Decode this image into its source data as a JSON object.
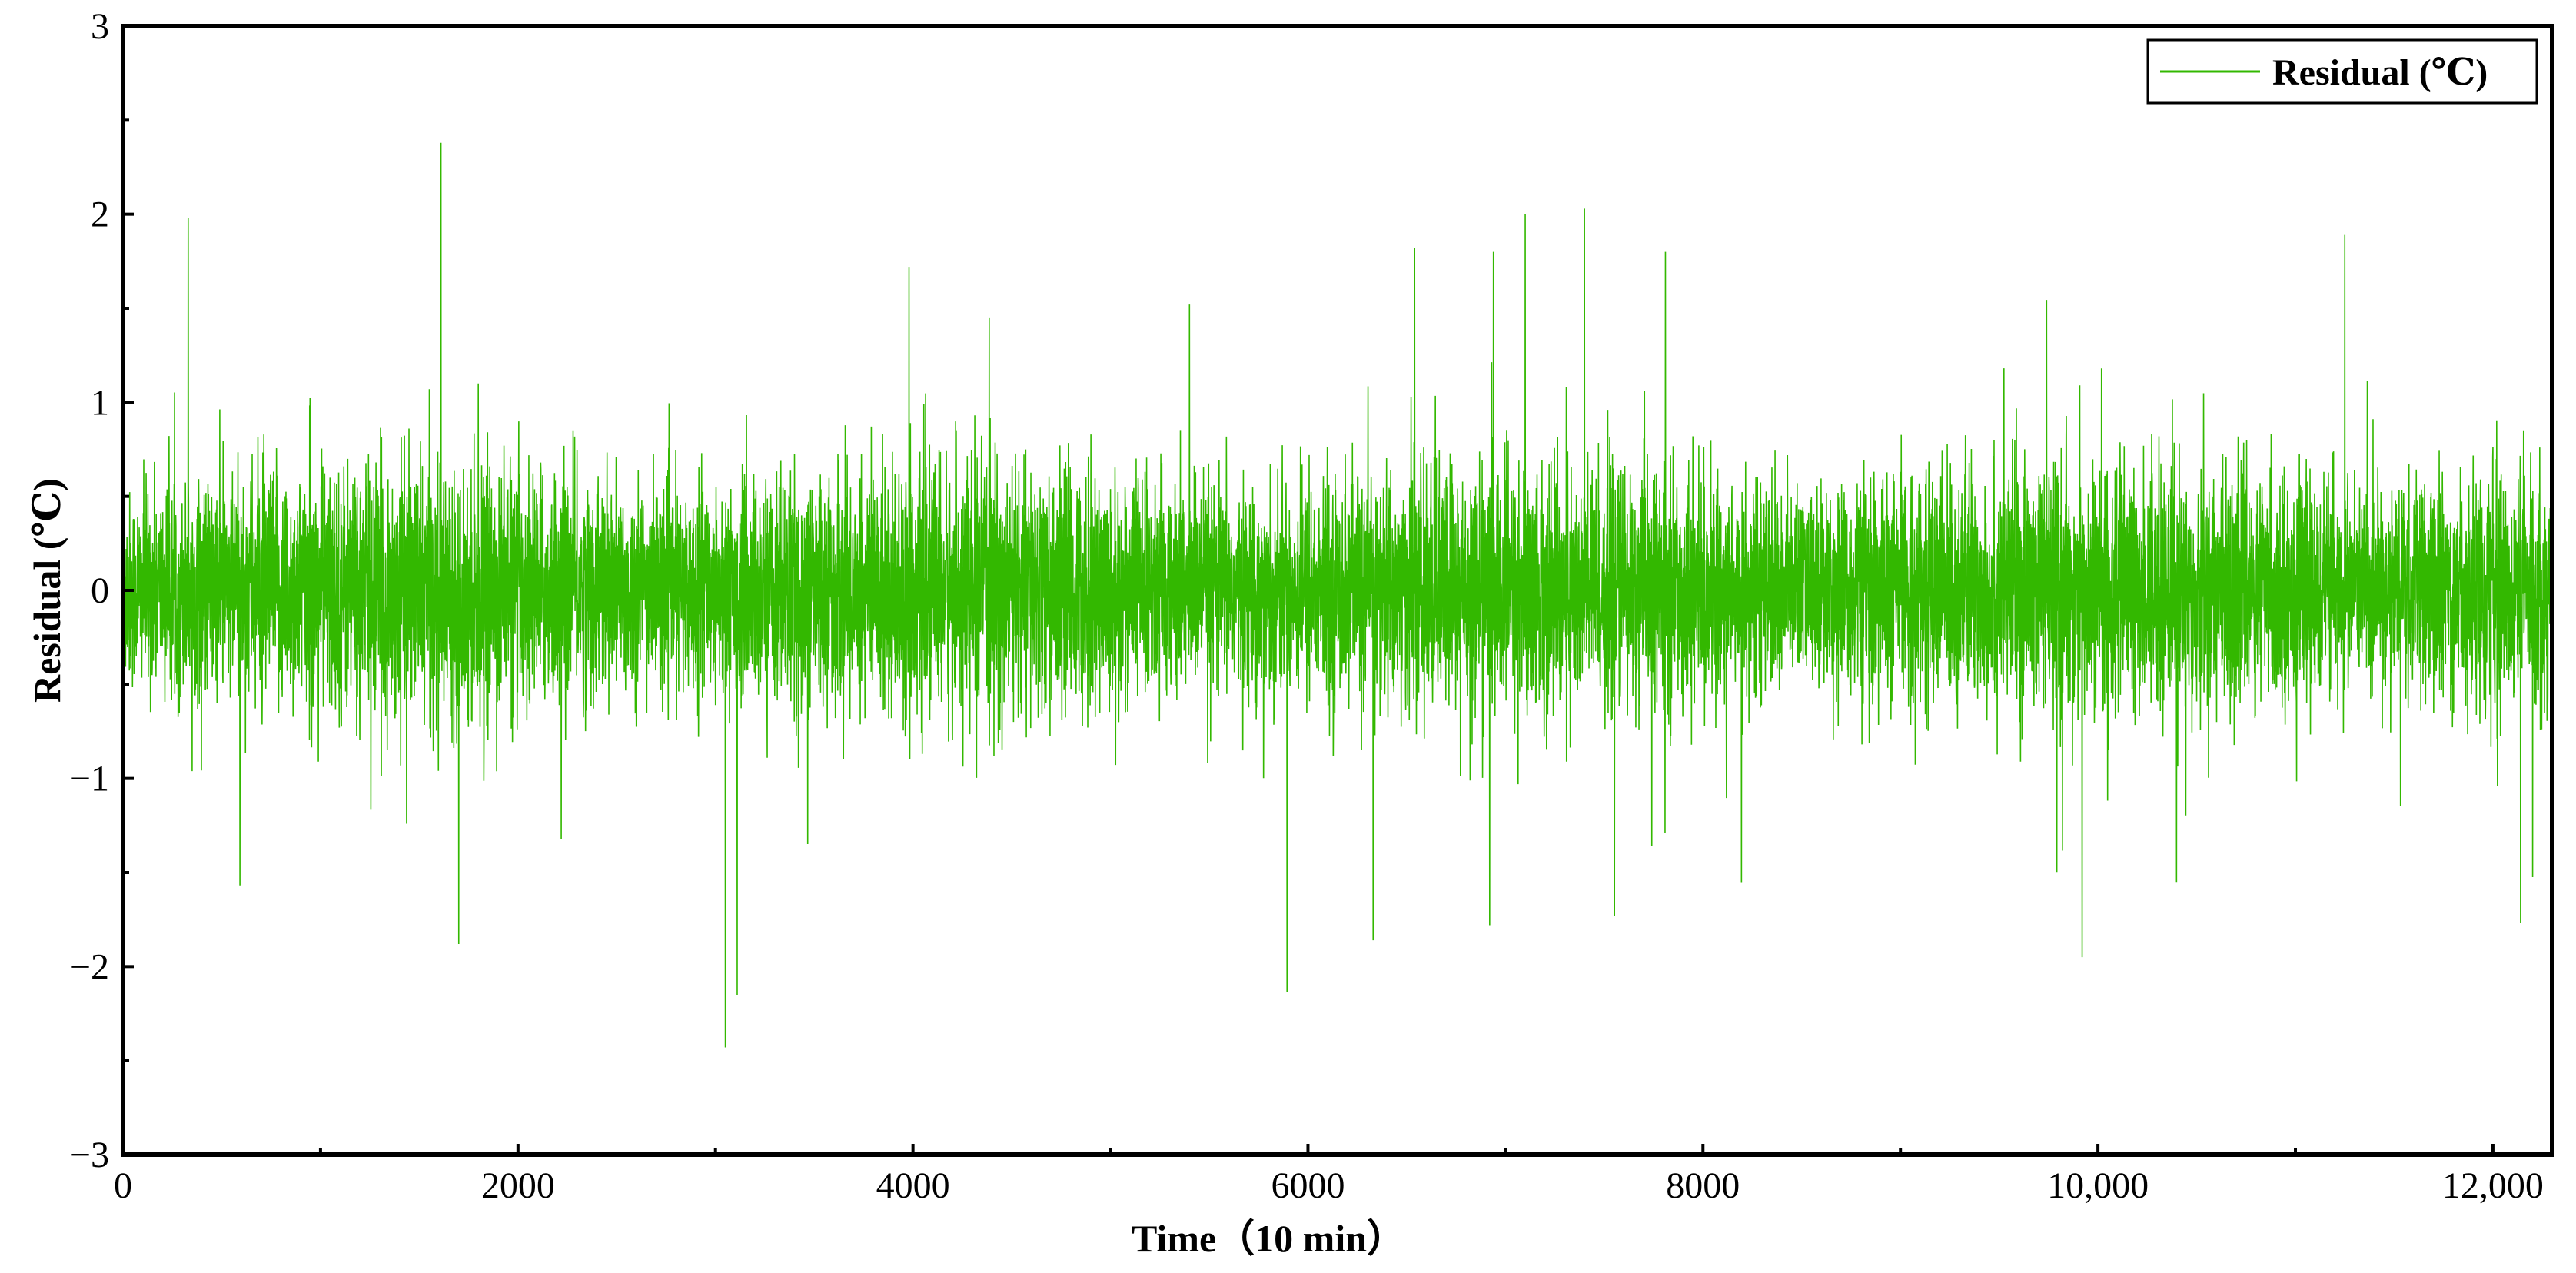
{
  "chart_data": {
    "type": "line",
    "title": "",
    "xlabel": "Time（10 min）",
    "ylabel": "Residual (℃)",
    "xlim": [
      0,
      12300
    ],
    "ylim": [
      -3,
      3
    ],
    "x_ticks": [
      0,
      2000,
      4000,
      6000,
      8000,
      10000,
      12000
    ],
    "x_tick_labels": [
      "0",
      "2000",
      "4000",
      "6000",
      "8000",
      "10,000",
      "12,000"
    ],
    "y_ticks": [
      -3,
      -2,
      -1,
      0,
      1,
      2
    ],
    "y_tick_labels": [
      "−3",
      "−2",
      "−1",
      "0",
      "1",
      "2"
    ],
    "y_top_label": "3",
    "grid": false,
    "legend_position": "top-right",
    "series": [
      {
        "name": "Residual (℃)",
        "color": "#33b800",
        "n_points": 12300,
        "noise_std": 0.3,
        "peaks": [
          {
            "x": 330,
            "y": 1.98
          },
          {
            "x": 1610,
            "y": 2.38
          },
          {
            "x": 1700,
            "y": -1.88
          },
          {
            "x": 3050,
            "y": -2.43
          },
          {
            "x": 3110,
            "y": -2.15
          },
          {
            "x": 3980,
            "y": 1.72
          },
          {
            "x": 5400,
            "y": 1.52
          },
          {
            "x": 6330,
            "y": -1.86
          },
          {
            "x": 6540,
            "y": 1.82
          },
          {
            "x": 6920,
            "y": -1.78
          },
          {
            "x": 7100,
            "y": 2.0
          },
          {
            "x": 7400,
            "y": 2.03
          },
          {
            "x": 9920,
            "y": -1.95
          },
          {
            "x": 11250,
            "y": 1.89
          },
          {
            "x": 12140,
            "y": -1.77
          }
        ]
      }
    ]
  }
}
